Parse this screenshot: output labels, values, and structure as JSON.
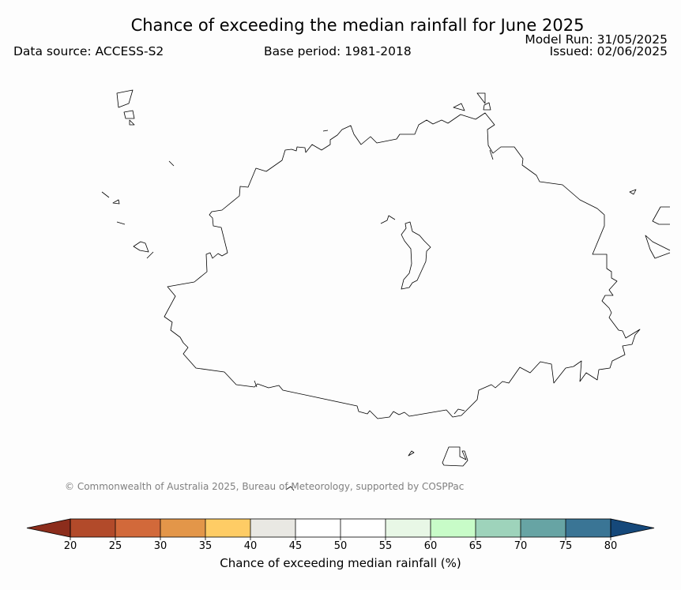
{
  "title": "Chance of exceeding the median rainfall for June 2025",
  "data_source": "Data source: ACCESS-S2",
  "base_period": "Base period: 1981-2018",
  "model_run": "Model Run: 31/05/2025",
  "issued": "Issued: 02/06/2025",
  "copyright": "© Commonwealth of Australia 2025, Bureau of Meteorology, supported by COSPPac",
  "colorbar": {
    "label": "Chance of exceeding median rainfall (%)",
    "ticks": [
      "20",
      "25",
      "30",
      "35",
      "40",
      "45",
      "50",
      "55",
      "60",
      "65",
      "70",
      "75",
      "80"
    ],
    "under_color": "#8c2d1c",
    "over_color": "#15487a",
    "bins": [
      {
        "from": 20,
        "to": 25,
        "color": "#b24a2a"
      },
      {
        "from": 25,
        "to": 30,
        "color": "#d2693a"
      },
      {
        "from": 30,
        "to": 35,
        "color": "#e39649"
      },
      {
        "from": 35,
        "to": 40,
        "color": "#fecc65"
      },
      {
        "from": 40,
        "to": 45,
        "color": "#e9e8e3"
      },
      {
        "from": 45,
        "to": 50,
        "color": "#ffffff"
      },
      {
        "from": 50,
        "to": 55,
        "color": "#ffffff"
      },
      {
        "from": 55,
        "to": 60,
        "color": "#e8f7e6"
      },
      {
        "from": 60,
        "to": 65,
        "color": "#c8fcc8"
      },
      {
        "from": 65,
        "to": 70,
        "color": "#9ed3bb"
      },
      {
        "from": 70,
        "to": 75,
        "color": "#67a4a4"
      },
      {
        "from": 75,
        "to": 80,
        "color": "#3a7595"
      }
    ]
  }
}
